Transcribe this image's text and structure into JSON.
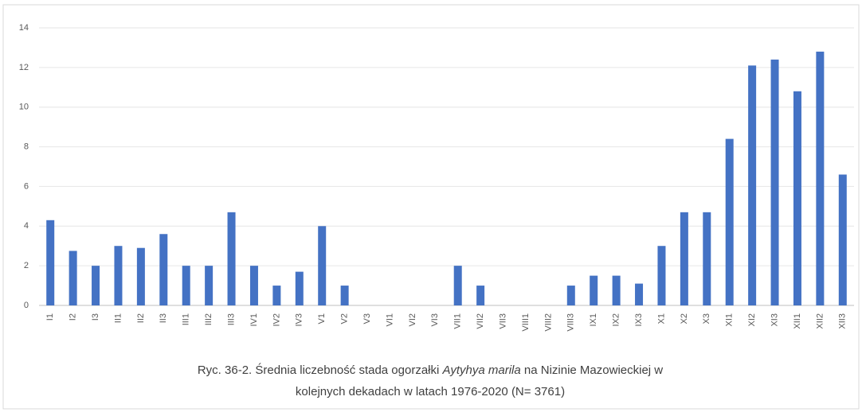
{
  "chart_data": {
    "type": "bar",
    "categories": [
      "I1",
      "I2",
      "I3",
      "II1",
      "II2",
      "II3",
      "III1",
      "III2",
      "III3",
      "IV1",
      "IV2",
      "IV3",
      "V1",
      "V2",
      "V3",
      "VI1",
      "VI2",
      "VI3",
      "VII1",
      "VII2",
      "VII3",
      "VIII1",
      "VIII2",
      "VIII3",
      "IX1",
      "IX2",
      "IX3",
      "X1",
      "X2",
      "X3",
      "XI1",
      "XI2",
      "XI3",
      "XII1",
      "XII2",
      "XII3"
    ],
    "values": [
      4.3,
      2.75,
      2.0,
      3.0,
      2.9,
      3.6,
      2.0,
      2.0,
      4.7,
      2.0,
      1.0,
      1.7,
      4.0,
      1.0,
      0,
      0,
      0,
      0,
      2.0,
      1.0,
      0,
      0,
      0,
      1.0,
      1.5,
      1.5,
      1.1,
      3.0,
      4.7,
      4.7,
      8.4,
      12.1,
      12.4,
      10.8,
      12.8,
      6.6
    ],
    "color": "#4472c4",
    "ylim": [
      0,
      14
    ],
    "yticks": [
      0,
      2,
      4,
      6,
      8,
      10,
      12,
      14
    ],
    "grid": true,
    "caption": [
      "Ryc. 36-2. Średnia liczebność stada ogorzałki ",
      "Aytyhya marila",
      " na Nizinie Mazowieckiej w",
      "kolejnych dekadach w latach 1976-2020 (N= 3761)"
    ]
  }
}
